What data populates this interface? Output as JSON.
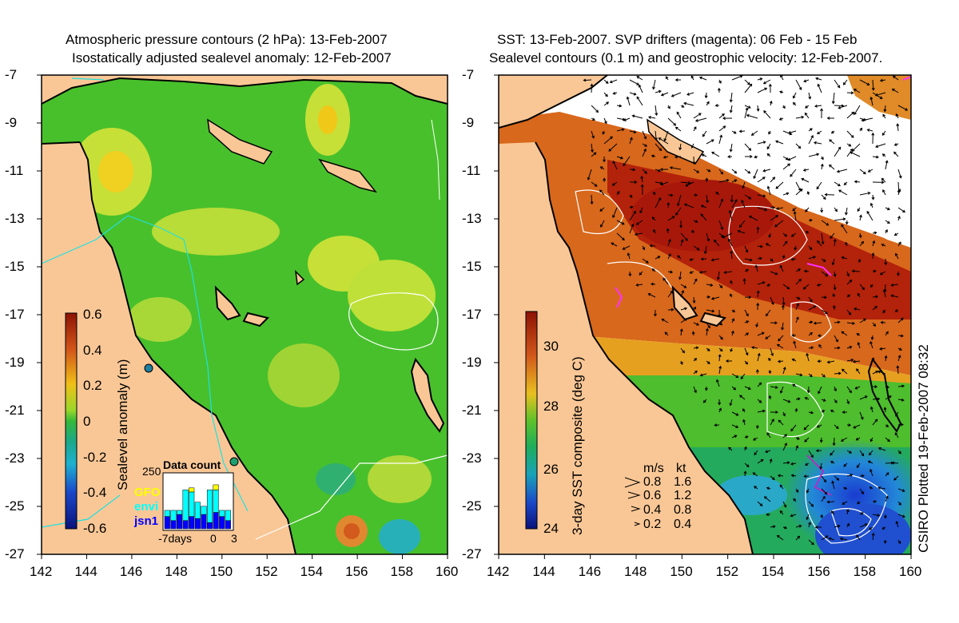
{
  "left_panel": {
    "title_line1": "Atmospheric pressure contours (2 hPa): 13-Feb-2007",
    "title_line2": "Isostatically adjusted sealevel anomaly: 12-Feb-2007",
    "colorbar_label": "Sealevel anomaly (m)",
    "colorbar_ticks": [
      "0.6",
      "0.4",
      "0.2",
      "0",
      "-0.2",
      "-0.4",
      "-0.6"
    ],
    "inset": {
      "title": "Data count",
      "ymax_label": "250",
      "legend": [
        {
          "label": "GFO",
          "color": "#ffff00"
        },
        {
          "label": "envi",
          "color": "#00ffff"
        },
        {
          "label": "jsn1",
          "color": "#0000ff"
        }
      ],
      "x_labels": [
        "-7days",
        "0",
        "3"
      ],
      "bars": [
        {
          "gfo": 0,
          "envi": 30,
          "jsn1": 60
        },
        {
          "gfo": 0,
          "envi": 50,
          "jsn1": 40
        },
        {
          "gfo": 0,
          "envi": 20,
          "jsn1": 70
        },
        {
          "gfo": 0,
          "envi": 150,
          "jsn1": 40
        },
        {
          "gfo": 20,
          "envi": 120,
          "jsn1": 60
        },
        {
          "gfo": 0,
          "envi": 80,
          "jsn1": 50
        },
        {
          "gfo": 0,
          "envi": 40,
          "jsn1": 70
        },
        {
          "gfo": 0,
          "envi": 160,
          "jsn1": 30
        },
        {
          "gfo": 25,
          "envi": 110,
          "jsn1": 80
        },
        {
          "gfo": 0,
          "envi": 30,
          "jsn1": 60
        },
        {
          "gfo": 0,
          "envi": 50,
          "jsn1": 40
        }
      ]
    }
  },
  "right_panel": {
    "title_line1": "SST: 13-Feb-2007. SVP drifters (magenta): 06 Feb - 15 Feb",
    "title_line2": "Sealevel contours (0.1 m) and geostrophic velocity: 12-Feb-2007.",
    "colorbar_label": "3-day SST composite (deg C)",
    "colorbar_ticks": [
      "30",
      "28",
      "26",
      "24"
    ],
    "velocity_legend": {
      "header_ms": "m/s",
      "header_kt": "kt",
      "rows": [
        {
          "ms": "0.8",
          "kt": "1.6"
        },
        {
          "ms": "0.6",
          "kt": "1.2"
        },
        {
          "ms": "0.4",
          "kt": "0.8"
        },
        {
          "ms": "0.2",
          "kt": "0.4"
        }
      ]
    }
  },
  "axes": {
    "x_ticks": [
      "142",
      "144",
      "146",
      "148",
      "150",
      "152",
      "154",
      "156",
      "158",
      "160"
    ],
    "y_ticks": [
      "-7",
      "-9",
      "-11",
      "-13",
      "-15",
      "-17",
      "-19",
      "-21",
      "-23",
      "-25",
      "-27"
    ]
  },
  "credit": "CSIRO Plotted 19-Feb-2007 08:32",
  "colors": {
    "land": "#f9c796",
    "sea_left": "#3fbf2a",
    "sst_warm": "#b01f0a",
    "sst_mid": "#d86a1c",
    "sst_cool": "#2aa63a",
    "sst_cold": "#1d5cc8"
  }
}
